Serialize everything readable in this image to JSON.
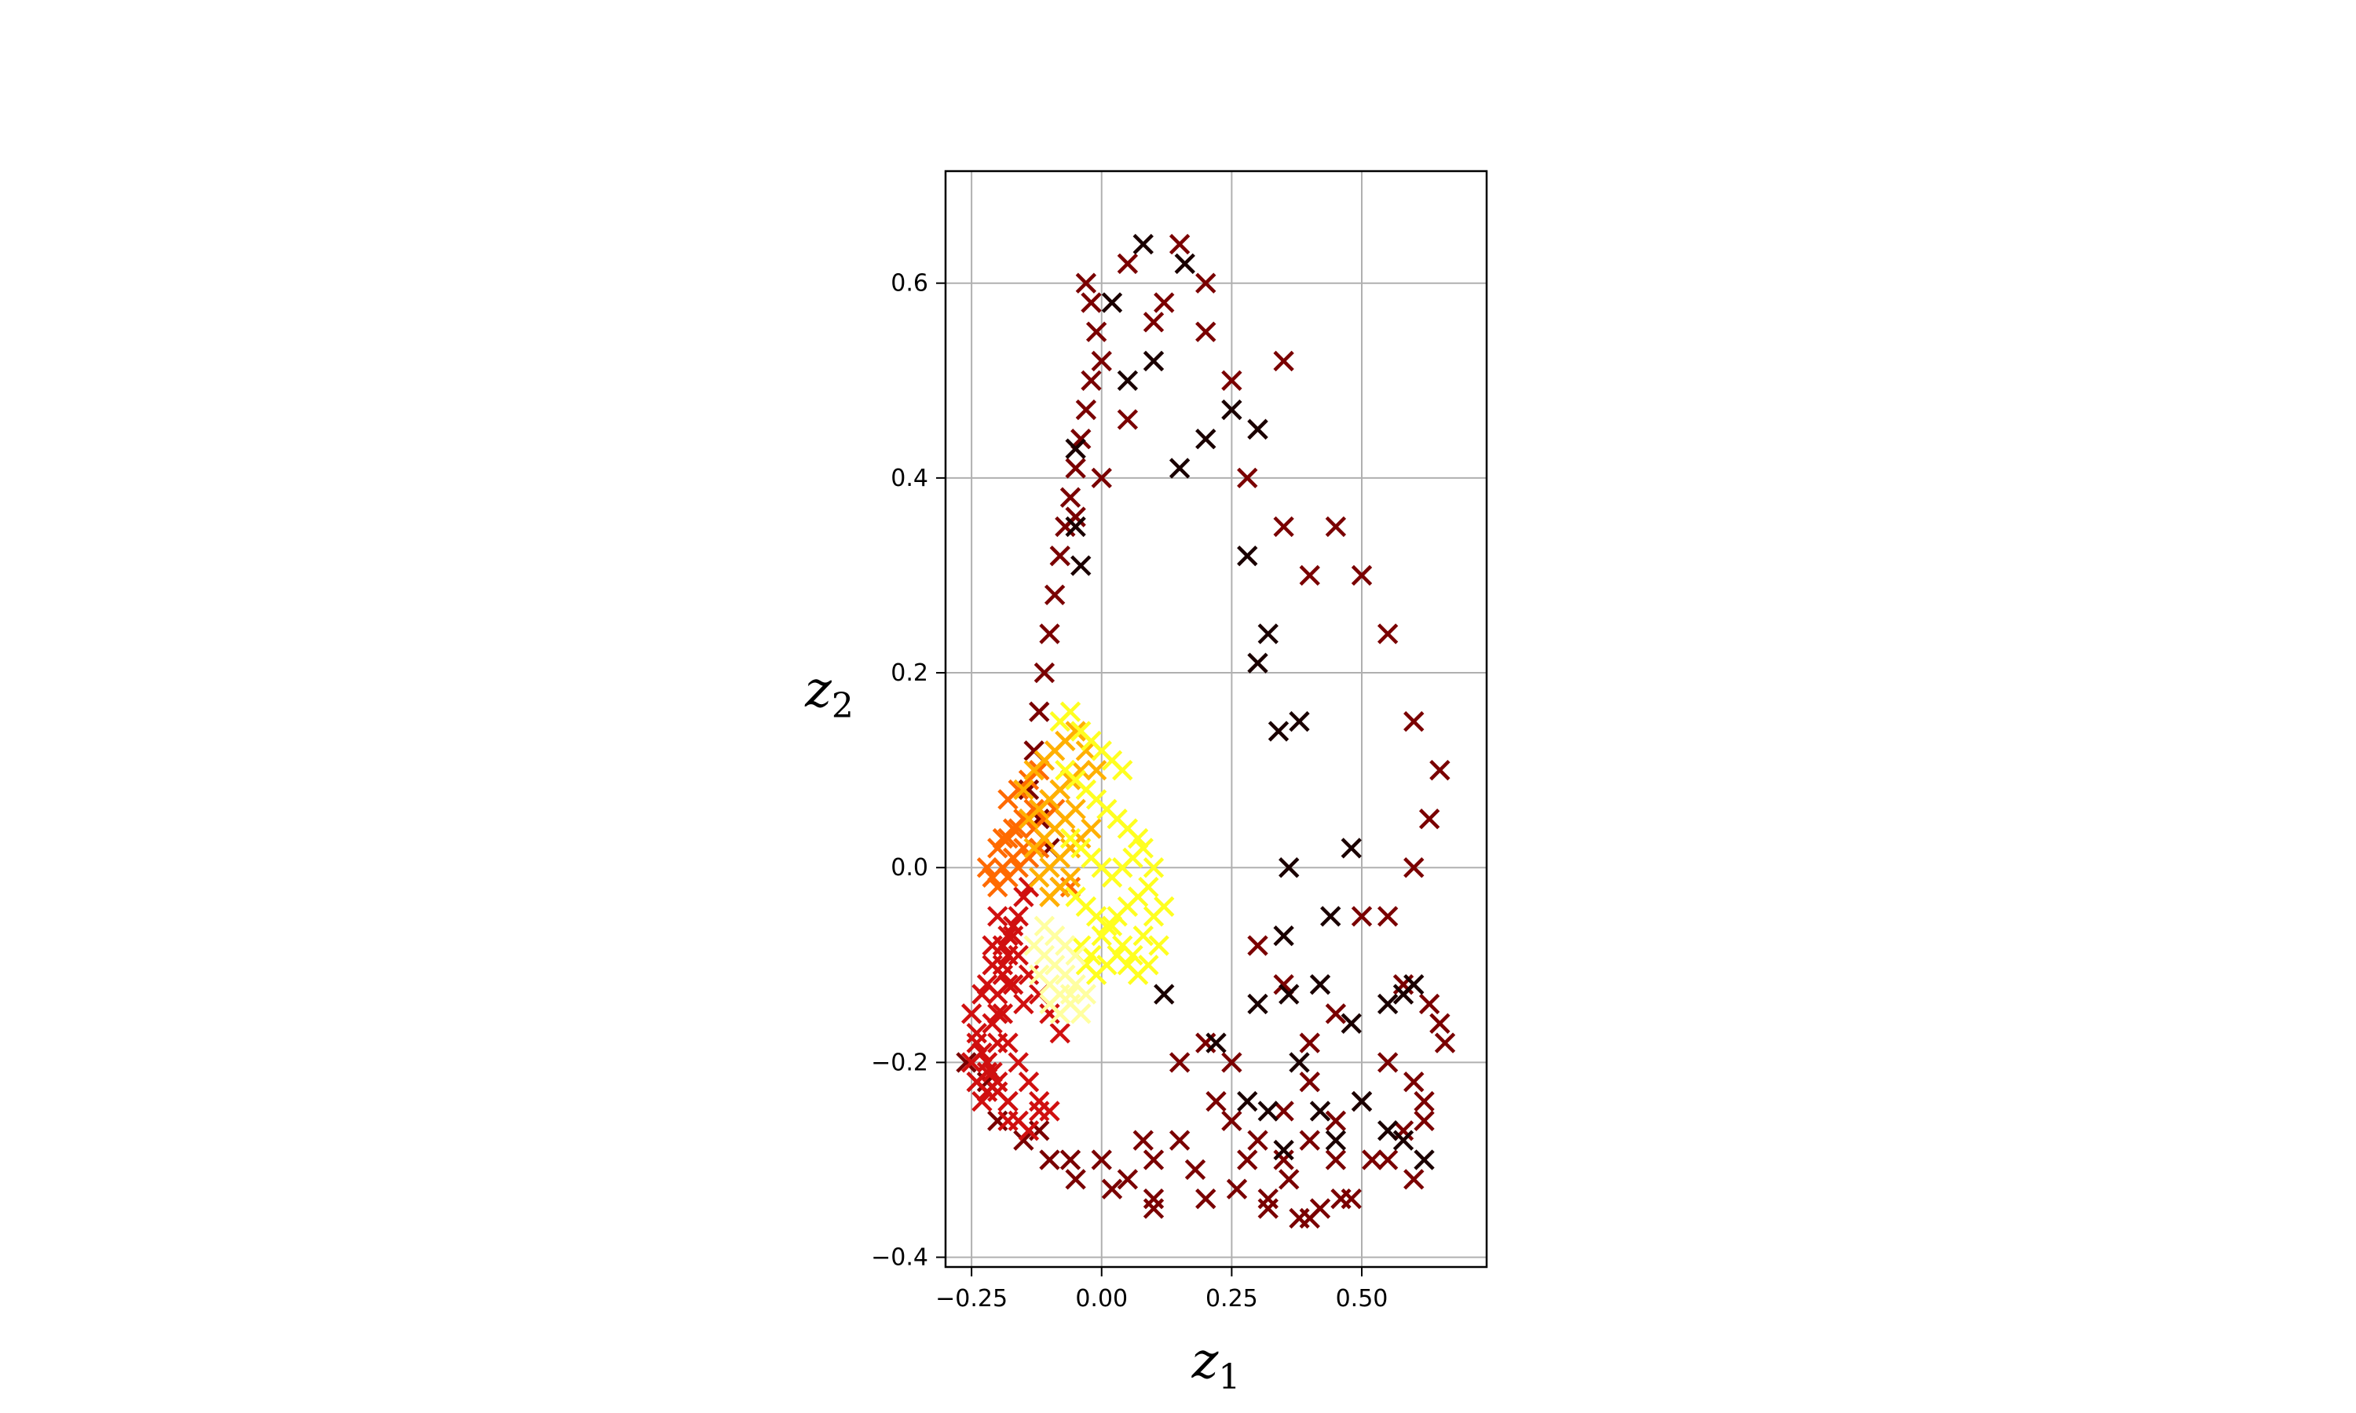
{
  "chart_data": {
    "type": "scatter",
    "title": "",
    "xlabel": "z",
    "xlabel_subscript": "1",
    "ylabel": "z",
    "ylabel_subscript": "2",
    "xlim": [
      -0.3,
      0.74
    ],
    "ylim": [
      -0.41,
      0.715
    ],
    "xticks": [
      -0.25,
      0.0,
      0.25,
      0.5
    ],
    "xtick_labels": [
      "−0.25",
      "0.00",
      "0.25",
      "0.50"
    ],
    "yticks": [
      -0.4,
      -0.2,
      0.0,
      0.2,
      0.4,
      0.6
    ],
    "ytick_labels": [
      "−0.4",
      "−0.2",
      "0.0",
      "0.2",
      "0.4",
      "0.6"
    ],
    "grid": true,
    "marker": "x",
    "colormap": "hot",
    "colormap_stops": [
      "#000000",
      "#800000",
      "#e00000",
      "#ff4000",
      "#ff8c00",
      "#ffcc00",
      "#ffff40",
      "#ffffb0"
    ],
    "series": [
      {
        "color": "#7a0000",
        "x": [
          -0.03,
          -0.02,
          -0.01,
          0.0,
          -0.02,
          -0.03,
          -0.04,
          -0.05,
          -0.06,
          -0.07,
          -0.08,
          -0.09,
          -0.1,
          -0.11,
          -0.12,
          -0.13,
          -0.14,
          -0.12,
          -0.1,
          -0.08,
          -0.05,
          0.0,
          0.05,
          0.1,
          0.15,
          0.2,
          0.25,
          0.3,
          0.35,
          0.05,
          0.12,
          0.2,
          0.28,
          0.35,
          0.4,
          0.45,
          0.5,
          0.55,
          0.6,
          0.65,
          0.63,
          0.6,
          0.55,
          0.5,
          0.45,
          0.4,
          0.35,
          0.3,
          0.25,
          0.2,
          0.15,
          0.1,
          0.05,
          0.0,
          -0.05,
          -0.1,
          -0.15,
          -0.2,
          -0.24,
          -0.26,
          -0.22,
          -0.18,
          -0.12,
          -0.06,
          0.02,
          0.1,
          0.18,
          0.26,
          0.32,
          0.4,
          0.46,
          0.52,
          0.58,
          0.62,
          0.66,
          0.63,
          0.58,
          0.55,
          0.6,
          0.62,
          0.65,
          0.35,
          0.4,
          0.45,
          0.38,
          0.32,
          0.28,
          0.25,
          0.2,
          0.1,
          0.08,
          0.15,
          0.22,
          0.3,
          0.36,
          0.42,
          0.48,
          0.55,
          0.6,
          0.5,
          0.45,
          0.4,
          0.35
        ],
        "y": [
          0.6,
          0.58,
          0.55,
          0.52,
          0.5,
          0.47,
          0.44,
          0.41,
          0.38,
          0.35,
          0.32,
          0.28,
          0.24,
          0.2,
          0.16,
          0.12,
          0.08,
          0.05,
          0.02,
          -0.02,
          0.36,
          0.4,
          0.46,
          0.56,
          0.64,
          0.6,
          0.5,
          0.45,
          0.52,
          0.62,
          0.58,
          0.55,
          0.4,
          0.35,
          0.3,
          0.35,
          0.3,
          0.24,
          0.15,
          0.1,
          0.05,
          0.0,
          -0.05,
          -0.05,
          -0.15,
          -0.18,
          -0.12,
          -0.08,
          -0.2,
          -0.18,
          -0.28,
          -0.3,
          -0.32,
          -0.3,
          -0.32,
          -0.3,
          -0.28,
          -0.26,
          -0.22,
          -0.2,
          -0.22,
          -0.24,
          -0.27,
          -0.3,
          -0.33,
          -0.34,
          -0.31,
          -0.33,
          -0.35,
          -0.36,
          -0.34,
          -0.3,
          -0.27,
          -0.24,
          -0.18,
          -0.14,
          -0.12,
          -0.2,
          -0.22,
          -0.26,
          -0.16,
          -0.25,
          -0.22,
          -0.3,
          -0.36,
          -0.34,
          -0.3,
          -0.26,
          -0.34,
          -0.35,
          -0.28,
          -0.2,
          -0.24,
          -0.28,
          -0.32,
          -0.35,
          -0.34,
          -0.3,
          -0.32,
          -0.24,
          -0.26,
          -0.28,
          -0.3
        ]
      },
      {
        "color": "#1a0000",
        "x": [
          -0.05,
          0.05,
          0.1,
          0.15,
          0.2,
          0.25,
          0.3,
          0.02,
          0.08,
          0.16,
          0.28,
          0.34,
          -0.04,
          0.32,
          0.38,
          0.36,
          0.48,
          0.44,
          0.3,
          0.36,
          0.42,
          0.5,
          0.55,
          0.58,
          0.6,
          0.38,
          0.32,
          0.28,
          0.22,
          0.35,
          0.42,
          0.45,
          0.55,
          0.62,
          0.3,
          -0.05,
          0.35,
          0.48,
          0.12,
          0.58
        ],
        "y": [
          0.35,
          0.5,
          0.52,
          0.41,
          0.44,
          0.47,
          0.45,
          0.58,
          0.64,
          0.62,
          0.32,
          0.14,
          0.31,
          0.24,
          0.15,
          0.0,
          0.02,
          -0.05,
          -0.14,
          -0.13,
          -0.12,
          -0.24,
          -0.14,
          -0.13,
          -0.12,
          -0.2,
          -0.25,
          -0.24,
          -0.18,
          -0.29,
          -0.25,
          -0.28,
          -0.27,
          -0.3,
          0.21,
          0.43,
          -0.07,
          -0.16,
          -0.13,
          -0.28
        ]
      },
      {
        "color": "#d01010",
        "x": [
          -0.25,
          -0.24,
          -0.23,
          -0.22,
          -0.21,
          -0.2,
          -0.19,
          -0.18,
          -0.17,
          -0.16,
          -0.15,
          -0.14,
          -0.25,
          -0.24,
          -0.23,
          -0.22,
          -0.21,
          -0.2,
          -0.19,
          -0.18,
          -0.24,
          -0.22,
          -0.2,
          -0.18,
          -0.16,
          -0.14,
          -0.12,
          -0.23,
          -0.21,
          -0.19,
          -0.17,
          -0.22,
          -0.2,
          -0.18,
          -0.16,
          -0.14,
          -0.12,
          -0.1,
          -0.21,
          -0.19,
          -0.17,
          -0.15,
          -0.2,
          -0.18,
          -0.16,
          -0.14,
          -0.12,
          -0.1,
          -0.08,
          -0.22,
          -0.2,
          -0.18
        ],
        "y": [
          -0.15,
          -0.17,
          -0.19,
          -0.21,
          -0.16,
          -0.13,
          -0.11,
          -0.09,
          -0.07,
          -0.05,
          -0.03,
          -0.02,
          -0.2,
          -0.22,
          -0.24,
          -0.23,
          -0.21,
          -0.18,
          -0.15,
          -0.12,
          -0.18,
          -0.2,
          -0.22,
          -0.24,
          -0.26,
          -0.27,
          -0.25,
          -0.13,
          -0.1,
          -0.08,
          -0.06,
          -0.12,
          -0.15,
          -0.18,
          -0.2,
          -0.22,
          -0.24,
          -0.25,
          -0.08,
          -0.1,
          -0.12,
          -0.14,
          -0.05,
          -0.07,
          -0.09,
          -0.11,
          -0.13,
          -0.15,
          -0.17,
          -0.2,
          -0.23,
          -0.26
        ]
      },
      {
        "color": "#ff6a00",
        "x": [
          -0.22,
          -0.2,
          -0.18,
          -0.16,
          -0.14,
          -0.12,
          -0.1,
          -0.08,
          -0.21,
          -0.19,
          -0.17,
          -0.15,
          -0.13,
          -0.11,
          -0.09,
          -0.2,
          -0.18,
          -0.16,
          -0.14,
          -0.12,
          -0.19,
          -0.17,
          -0.15,
          -0.13,
          -0.18,
          -0.16,
          -0.14,
          -0.12,
          -0.1,
          -0.08,
          -0.06
        ],
        "y": [
          0.0,
          0.02,
          0.03,
          0.04,
          0.05,
          0.06,
          0.07,
          0.08,
          -0.01,
          0.0,
          0.01,
          0.02,
          0.04,
          0.05,
          0.06,
          -0.02,
          -0.01,
          0.0,
          0.01,
          0.02,
          0.03,
          0.04,
          0.05,
          0.06,
          0.07,
          0.08,
          0.09,
          0.1,
          -0.03,
          -0.02,
          -0.02
        ]
      },
      {
        "color": "#ffb000",
        "x": [
          -0.15,
          -0.13,
          -0.11,
          -0.09,
          -0.07,
          -0.05,
          -0.03,
          -0.01,
          -0.14,
          -0.12,
          -0.1,
          -0.08,
          -0.06,
          -0.04,
          -0.13,
          -0.11,
          -0.09,
          -0.07,
          -0.05,
          -0.12,
          -0.1,
          -0.08,
          -0.06,
          -0.04,
          -0.02,
          -0.1,
          -0.08,
          -0.06
        ],
        "y": [
          0.08,
          0.1,
          0.11,
          0.12,
          0.13,
          0.14,
          0.12,
          0.1,
          0.05,
          0.06,
          0.07,
          0.08,
          0.09,
          0.1,
          0.02,
          0.03,
          0.04,
          0.05,
          0.06,
          -0.01,
          0.0,
          0.01,
          0.02,
          0.03,
          0.04,
          -0.03,
          -0.02,
          -0.01
        ]
      },
      {
        "color": "#ffff20",
        "x": [
          -0.08,
          -0.06,
          -0.04,
          -0.02,
          0.0,
          0.02,
          0.04,
          -0.07,
          -0.05,
          -0.03,
          -0.01,
          0.01,
          0.03,
          0.05,
          0.07,
          -0.06,
          -0.04,
          -0.02,
          0.0,
          0.02,
          0.04,
          0.06,
          0.08,
          0.1,
          -0.05,
          -0.03,
          -0.01,
          0.01,
          0.03,
          0.05,
          0.07,
          0.09,
          -0.04,
          -0.02,
          0.0,
          0.02,
          0.04,
          0.06,
          0.08,
          0.1,
          0.12,
          -0.03,
          -0.01,
          0.01,
          0.03,
          0.05,
          0.07,
          0.09,
          0.11
        ],
        "y": [
          0.15,
          0.16,
          0.14,
          0.13,
          0.12,
          0.11,
          0.1,
          0.1,
          0.09,
          0.08,
          0.07,
          0.06,
          0.05,
          0.04,
          0.03,
          0.03,
          0.02,
          0.01,
          0.0,
          -0.01,
          0.0,
          0.01,
          0.02,
          0.0,
          -0.03,
          -0.04,
          -0.05,
          -0.06,
          -0.05,
          -0.04,
          -0.03,
          -0.02,
          -0.08,
          -0.09,
          -0.07,
          -0.06,
          -0.08,
          -0.09,
          -0.07,
          -0.05,
          -0.04,
          -0.1,
          -0.11,
          -0.1,
          -0.09,
          -0.1,
          -0.11,
          -0.1,
          -0.08
        ]
      },
      {
        "color": "#ffffa0",
        "x": [
          -0.13,
          -0.11,
          -0.09,
          -0.07,
          -0.05,
          -0.03,
          -0.12,
          -0.1,
          -0.08,
          -0.06,
          -0.04,
          -0.11,
          -0.09,
          -0.07,
          -0.05,
          -0.1,
          -0.08,
          -0.06
        ],
        "y": [
          -0.08,
          -0.09,
          -0.1,
          -0.11,
          -0.12,
          -0.13,
          -0.11,
          -0.12,
          -0.13,
          -0.14,
          -0.15,
          -0.06,
          -0.07,
          -0.08,
          -0.09,
          -0.14,
          -0.15,
          -0.13
        ]
      }
    ]
  }
}
